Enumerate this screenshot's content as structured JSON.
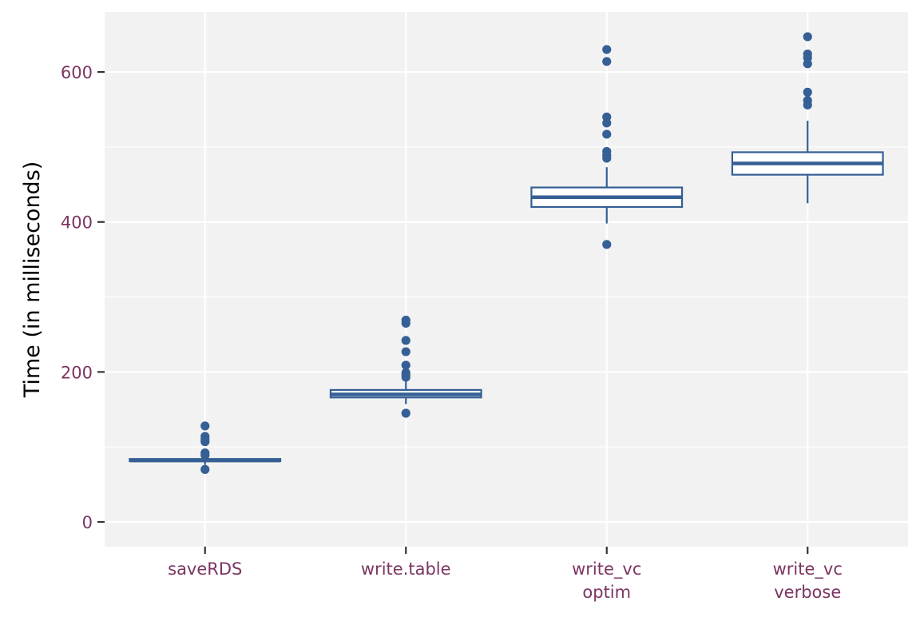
{
  "chart_data": {
    "type": "boxplot",
    "title": "",
    "xlabel": "",
    "ylabel": "Time (in milliseconds)",
    "ylim": [
      -33,
      680
    ],
    "y_ticks": [
      0,
      200,
      400,
      600
    ],
    "categories": [
      {
        "lines": [
          "saveRDS"
        ]
      },
      {
        "lines": [
          "write.table"
        ]
      },
      {
        "lines": [
          "write_vc",
          "optim"
        ]
      },
      {
        "lines": [
          "write_vc",
          "verbose"
        ]
      }
    ],
    "boxes": [
      {
        "q1": 81,
        "median": 82,
        "q3": 84,
        "whisker_low": 76,
        "whisker_high": 87,
        "outliers": [
          128,
          114,
          110,
          107,
          92,
          89,
          70
        ]
      },
      {
        "q1": 166,
        "median": 170,
        "q3": 176,
        "whisker_low": 157,
        "whisker_high": 188,
        "outliers": [
          269,
          265,
          242,
          227,
          209,
          199,
          196,
          193,
          145
        ]
      },
      {
        "q1": 420,
        "median": 433,
        "q3": 446,
        "whisker_low": 398,
        "whisker_high": 473,
        "outliers": [
          630,
          614,
          540,
          532,
          517,
          494,
          489,
          485,
          370
        ]
      },
      {
        "q1": 463,
        "median": 478,
        "q3": 493,
        "whisker_low": 425,
        "whisker_high": 535,
        "outliers": [
          647,
          624,
          619,
          611,
          573,
          562,
          556
        ]
      }
    ],
    "grid": true,
    "legend": "none",
    "colors": {
      "box": "#355f95",
      "panel": "#f2f2f2",
      "grid": "#ffffff",
      "tick_label": "#7b3562",
      "axis_title": "#000000"
    }
  }
}
